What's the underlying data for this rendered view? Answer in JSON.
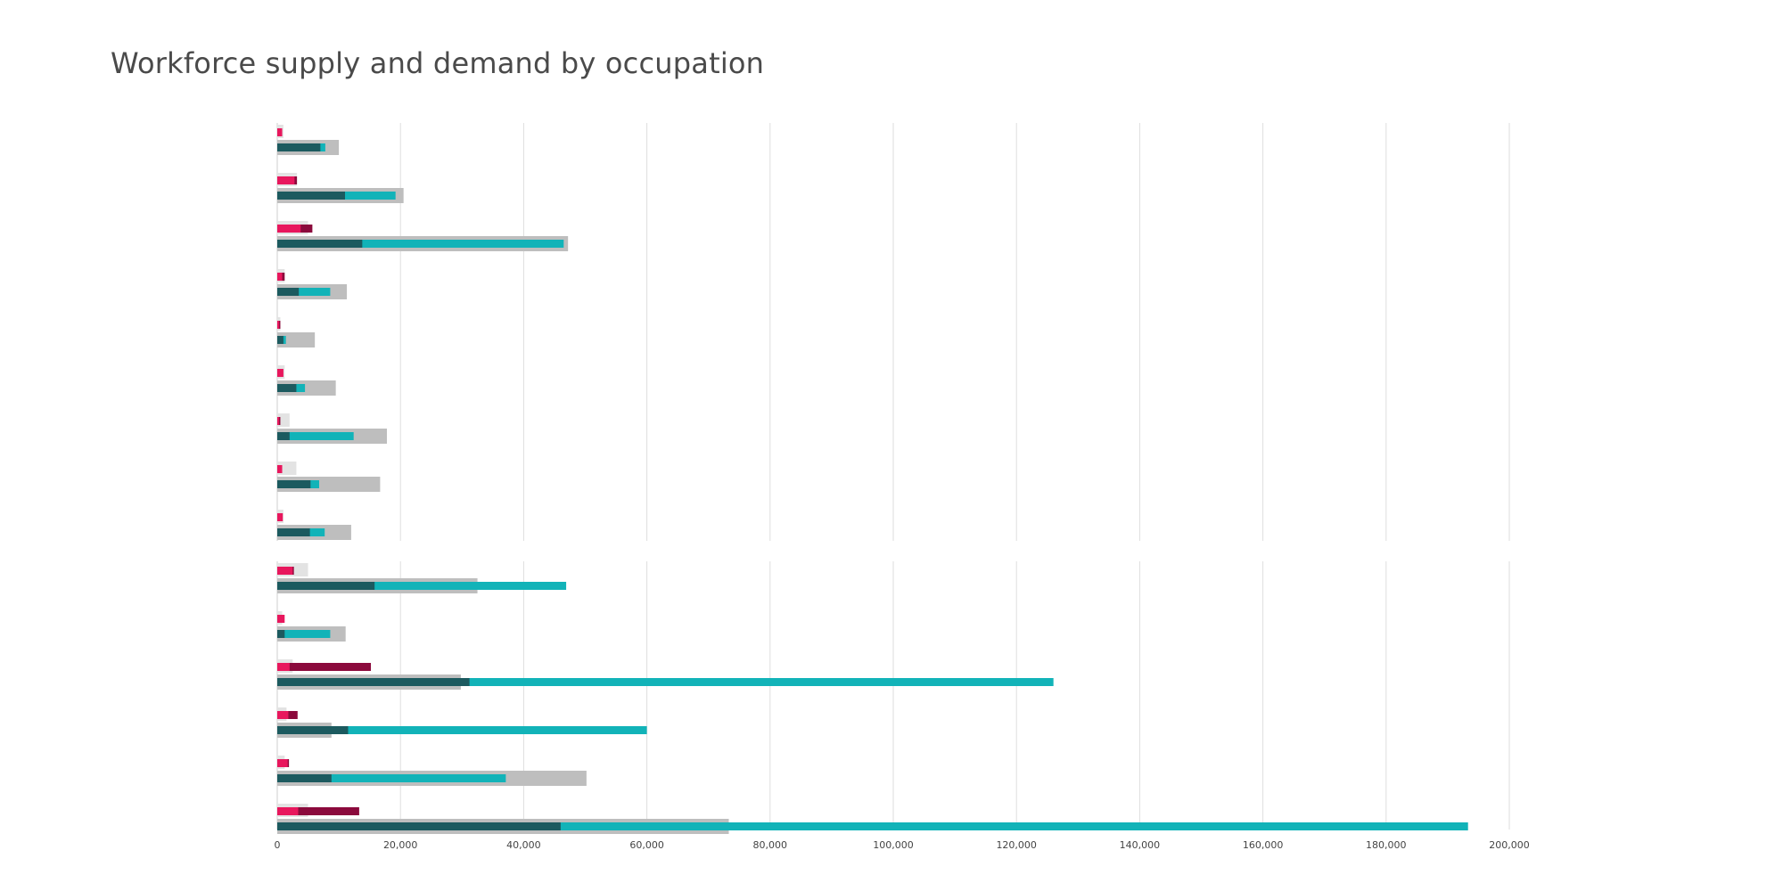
{
  "chart_data": {
    "type": "bar",
    "title": "Workforce supply and demand by occupation",
    "xlabel": "",
    "ylabel": "",
    "xlim": [
      0,
      200000
    ],
    "grid": true,
    "x_ticks": [
      "0",
      "20,000",
      "40,000",
      "60,000",
      "80,000",
      "100,000",
      "120,000",
      "140,000",
      "160,000",
      "180,000",
      "200,000"
    ],
    "x_tick_values": [
      0,
      20000,
      40000,
      60000,
      80000,
      100000,
      120000,
      140000,
      160000,
      180000,
      200000
    ],
    "colors": {
      "pink": "#e8175d",
      "crimson": "#8b0a3c",
      "light_grey": "#e3e3e3",
      "grey": "#bebebe",
      "dark_teal": "#1c5a5f",
      "teal": "#12b3b8"
    },
    "panels": [
      {
        "rows": [
          {
            "upper": {
              "grey": 1000,
              "pink": 800,
              "crimson": 0
            },
            "lower": {
              "grey": 10000,
              "dark_teal": 7000,
              "teal": 7800
            }
          },
          {
            "upper": {
              "grey": 3200,
              "pink": 2800,
              "crimson": 3200
            },
            "lower": {
              "grey": 20500,
              "dark_teal": 11000,
              "teal": 19200
            }
          },
          {
            "upper": {
              "grey": 5000,
              "pink": 3800,
              "crimson": 5700
            },
            "lower": {
              "grey": 47200,
              "dark_teal": 13800,
              "teal": 46500
            }
          },
          {
            "upper": {
              "grey": 1200,
              "pink": 800,
              "crimson": 1200
            },
            "lower": {
              "grey": 11300,
              "dark_teal": 3500,
              "teal": 8600
            }
          },
          {
            "upper": {
              "grey": 500,
              "pink": 300,
              "crimson": 500
            },
            "lower": {
              "grey": 6100,
              "dark_teal": 1000,
              "teal": 1400
            }
          },
          {
            "upper": {
              "grey": 1200,
              "pink": 1000,
              "crimson": 0
            },
            "lower": {
              "grey": 9500,
              "dark_teal": 3100,
              "teal": 4500
            }
          },
          {
            "upper": {
              "grey": 2000,
              "pink": 300,
              "crimson": 500
            },
            "lower": {
              "grey": 17800,
              "dark_teal": 2000,
              "teal": 12400
            }
          },
          {
            "upper": {
              "grey": 3100,
              "pink": 800,
              "crimson": 0
            },
            "lower": {
              "grey": 16700,
              "dark_teal": 5400,
              "teal": 6800
            }
          },
          {
            "upper": {
              "grey": 1000,
              "pink": 900,
              "crimson": 0
            },
            "lower": {
              "grey": 12000,
              "dark_teal": 5300,
              "teal": 7700
            }
          }
        ]
      },
      {
        "rows": [
          {
            "upper": {
              "grey": 5000,
              "pink": 2500,
              "crimson": 2700
            },
            "lower": {
              "grey": 32500,
              "dark_teal": 15800,
              "teal": 46900
            }
          },
          {
            "upper": {
              "grey": 800,
              "pink": 1200,
              "crimson": 0
            },
            "lower": {
              "grey": 11100,
              "dark_teal": 1200,
              "teal": 8600
            }
          },
          {
            "upper": {
              "grey": 2500,
              "pink": 2000,
              "crimson": 15200
            },
            "lower": {
              "grey": 29800,
              "dark_teal": 31200,
              "teal": 126000
            }
          },
          {
            "upper": {
              "grey": 1500,
              "pink": 1800,
              "crimson": 3300
            },
            "lower": {
              "grey": 8800,
              "dark_teal": 11500,
              "teal": 60000
            }
          },
          {
            "upper": {
              "grey": 1200,
              "pink": 1700,
              "crimson": 1900
            },
            "lower": {
              "grey": 50200,
              "dark_teal": 8800,
              "teal": 37100
            }
          },
          {
            "upper": {
              "grey": 5000,
              "pink": 3400,
              "crimson": 13300
            },
            "lower": {
              "grey": 73300,
              "dark_teal": 46000,
              "teal": 193300
            }
          }
        ]
      }
    ]
  }
}
